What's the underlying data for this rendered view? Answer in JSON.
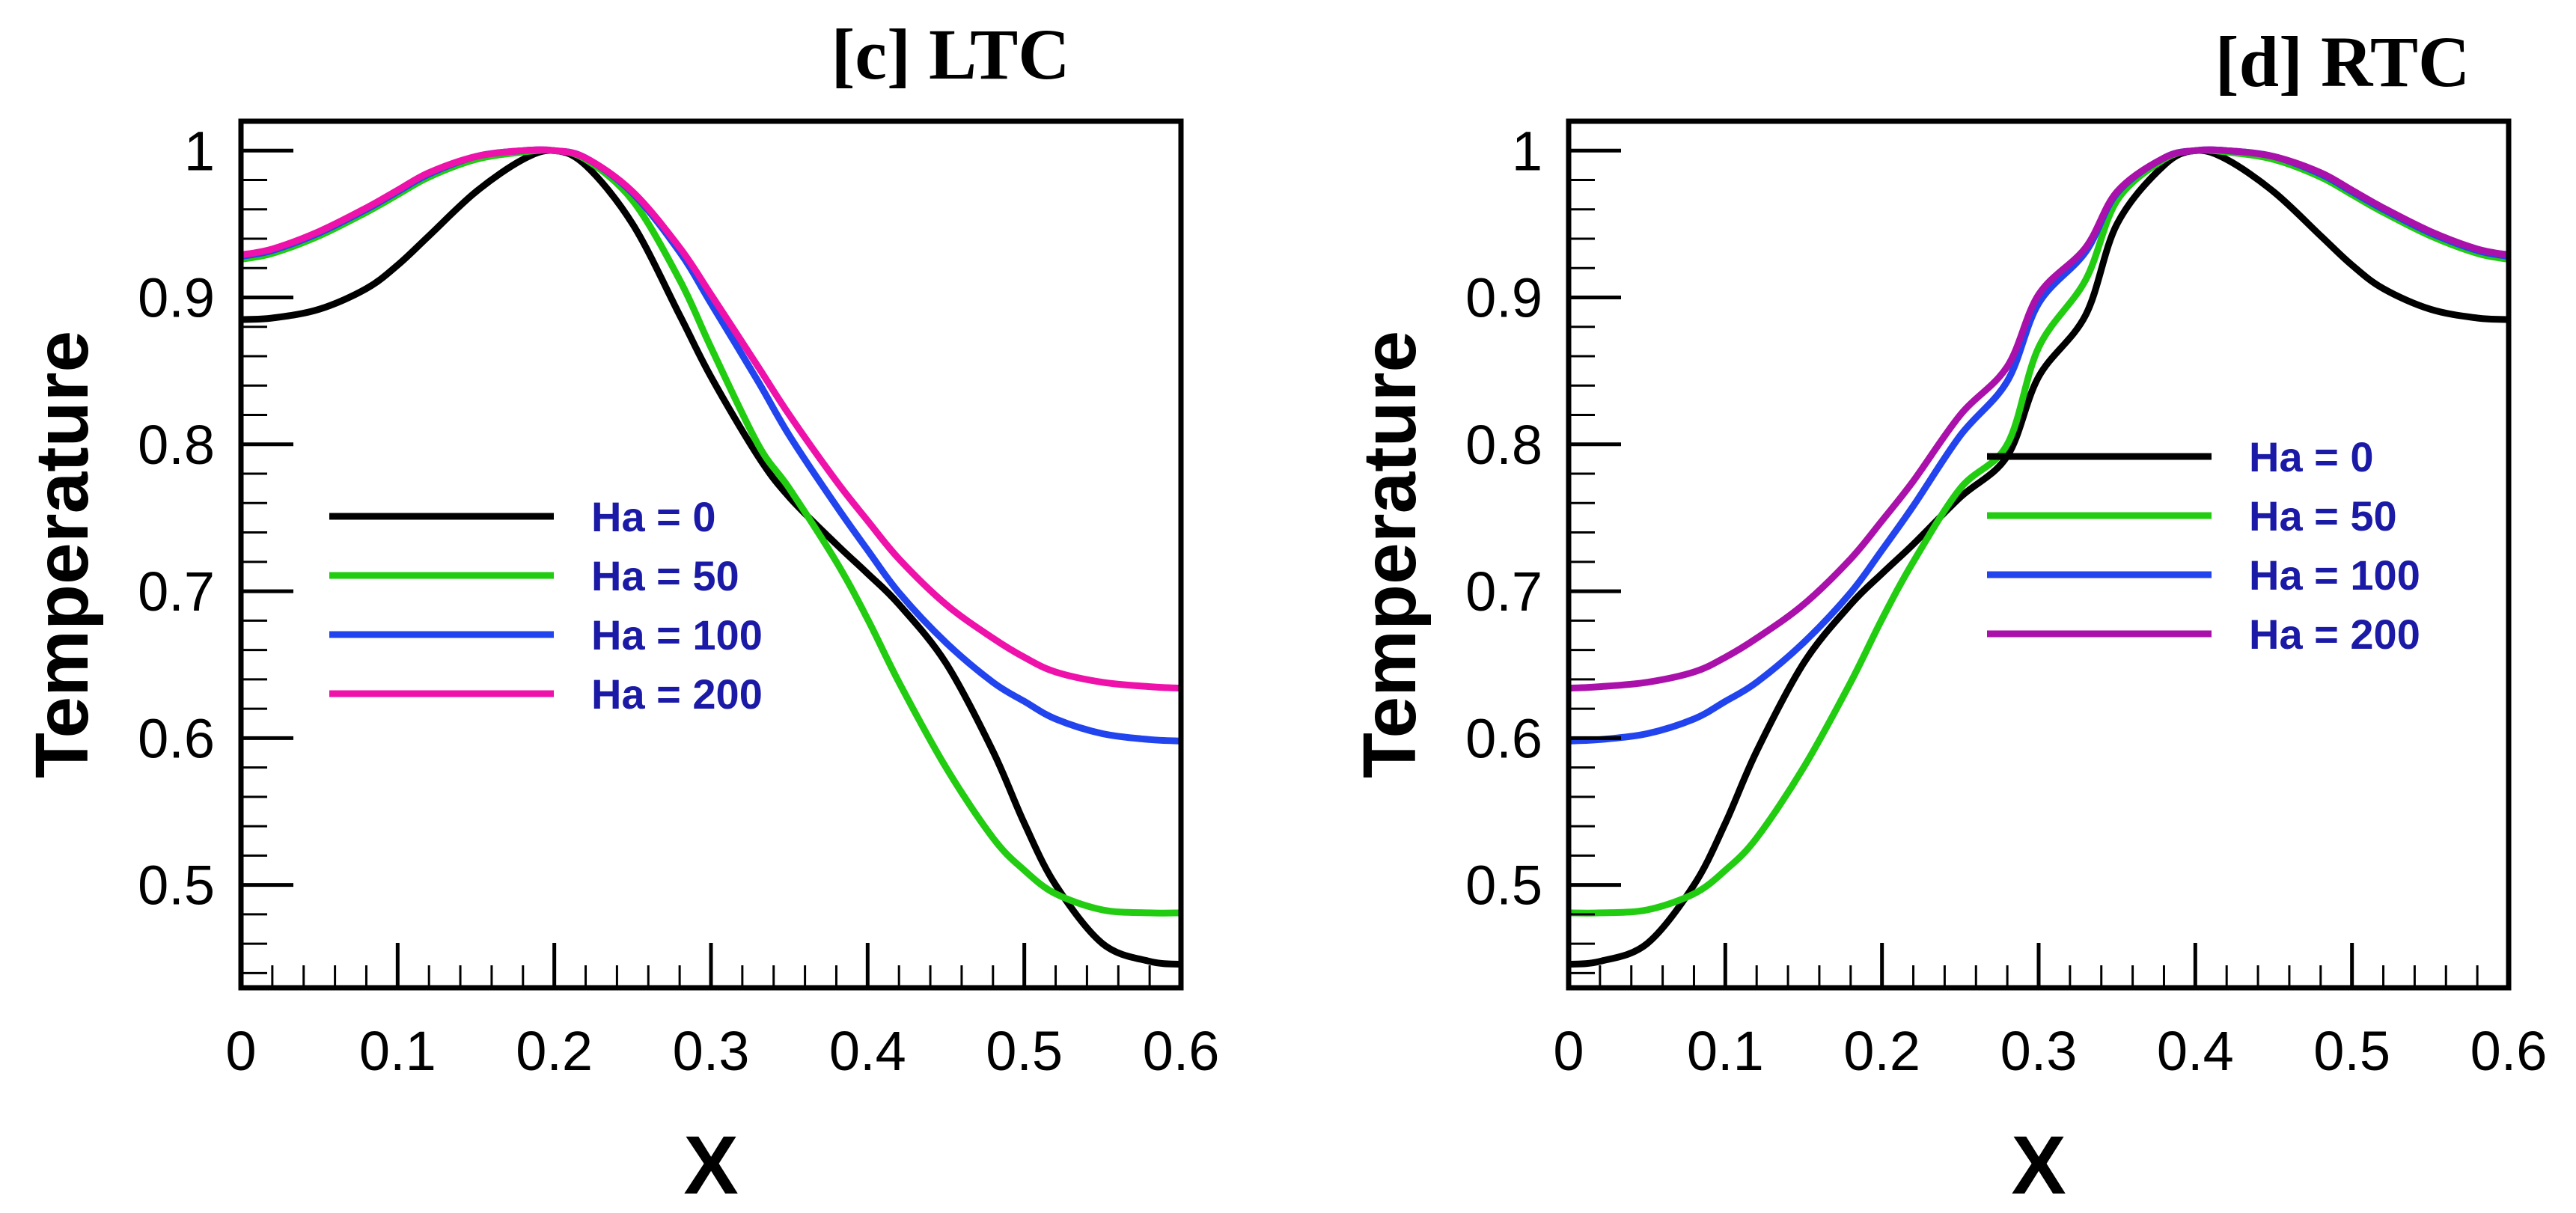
{
  "chart_data": [
    {
      "type": "line",
      "title": "[c] LTC",
      "xlabel": "X",
      "ylabel": "Temperature",
      "xlim": [
        0,
        0.6
      ],
      "ylim": [
        0.43,
        1.02
      ],
      "xticks": [
        0,
        0.1,
        0.2,
        0.3,
        0.4,
        0.5,
        0.6
      ],
      "xtick_labels": [
        "0",
        "0.1",
        "0.2",
        "0.3",
        "0.4",
        "0.5",
        "0.6"
      ],
      "yticks": [
        0.5,
        0.6,
        0.7,
        0.8,
        0.9,
        1.0
      ],
      "ytick_labels": [
        "0.5",
        "0.6",
        "0.7",
        "0.8",
        "0.9",
        "1"
      ],
      "legend_position": "center-left",
      "series": [
        {
          "name": "Ha = 0",
          "color": "#000000",
          "x": [
            0,
            0.02,
            0.05,
            0.08,
            0.1,
            0.12,
            0.15,
            0.18,
            0.2,
            0.22,
            0.25,
            0.28,
            0.3,
            0.33,
            0.35,
            0.38,
            0.4,
            0.42,
            0.45,
            0.48,
            0.5,
            0.52,
            0.55,
            0.58,
            0.6
          ],
          "y": [
            0.885,
            0.886,
            0.892,
            0.906,
            0.922,
            0.942,
            0.972,
            0.994,
            1.0,
            0.99,
            0.95,
            0.888,
            0.846,
            0.792,
            0.764,
            0.732,
            0.712,
            0.691,
            0.651,
            0.591,
            0.542,
            0.5,
            0.46,
            0.448,
            0.446
          ]
        },
        {
          "name": "Ha = 50",
          "color": "#22cc11",
          "x": [
            0,
            0.02,
            0.05,
            0.08,
            0.1,
            0.12,
            0.15,
            0.18,
            0.2,
            0.22,
            0.25,
            0.28,
            0.3,
            0.33,
            0.35,
            0.38,
            0.4,
            0.42,
            0.45,
            0.48,
            0.5,
            0.52,
            0.55,
            0.58,
            0.6
          ],
          "y": [
            0.926,
            0.93,
            0.942,
            0.958,
            0.97,
            0.982,
            0.994,
            0.999,
            1.0,
            0.994,
            0.966,
            0.912,
            0.866,
            0.8,
            0.77,
            0.72,
            0.681,
            0.638,
            0.58,
            0.532,
            0.51,
            0.494,
            0.483,
            0.481,
            0.481
          ]
        },
        {
          "name": "Ha = 100",
          "color": "#2244ee",
          "x": [
            0,
            0.02,
            0.05,
            0.08,
            0.1,
            0.12,
            0.15,
            0.18,
            0.2,
            0.22,
            0.25,
            0.28,
            0.3,
            0.33,
            0.35,
            0.38,
            0.4,
            0.42,
            0.45,
            0.48,
            0.5,
            0.52,
            0.55,
            0.58,
            0.6
          ],
          "y": [
            0.928,
            0.932,
            0.944,
            0.96,
            0.972,
            0.984,
            0.996,
            1.0,
            1.0,
            0.995,
            0.971,
            0.931,
            0.896,
            0.843,
            0.806,
            0.758,
            0.728,
            0.699,
            0.665,
            0.638,
            0.625,
            0.613,
            0.603,
            0.599,
            0.598
          ]
        },
        {
          "name": "Ha = 200",
          "color": "#ee11aa",
          "x": [
            0,
            0.02,
            0.05,
            0.08,
            0.1,
            0.12,
            0.15,
            0.18,
            0.2,
            0.22,
            0.25,
            0.28,
            0.3,
            0.33,
            0.35,
            0.38,
            0.4,
            0.42,
            0.45,
            0.48,
            0.5,
            0.52,
            0.55,
            0.58,
            0.6
          ],
          "y": [
            0.929,
            0.933,
            0.945,
            0.961,
            0.973,
            0.985,
            0.996,
            1.0,
            1.0,
            0.995,
            0.972,
            0.934,
            0.902,
            0.853,
            0.82,
            0.775,
            0.748,
            0.722,
            0.691,
            0.668,
            0.655,
            0.645,
            0.638,
            0.635,
            0.634
          ]
        }
      ]
    },
    {
      "type": "line",
      "title": "[d] RTC",
      "xlabel": "X",
      "ylabel": "Temperature",
      "xlim": [
        0,
        0.6
      ],
      "ylim": [
        0.43,
        1.02
      ],
      "xticks": [
        0,
        0.1,
        0.2,
        0.3,
        0.4,
        0.5,
        0.6
      ],
      "xtick_labels": [
        "0",
        "0.1",
        "0.2",
        "0.3",
        "0.4",
        "0.5",
        "0.6"
      ],
      "yticks": [
        0.5,
        0.6,
        0.7,
        0.8,
        0.9,
        1.0
      ],
      "ytick_labels": [
        "0.5",
        "0.6",
        "0.7",
        "0.8",
        "0.9",
        "1"
      ],
      "legend_position": "center-right",
      "series": [
        {
          "name": "Ha = 0",
          "color": "#000000",
          "x": [
            0,
            0.02,
            0.05,
            0.08,
            0.1,
            0.12,
            0.15,
            0.18,
            0.2,
            0.22,
            0.25,
            0.28,
            0.3,
            0.33,
            0.35,
            0.38,
            0.4,
            0.42,
            0.45,
            0.48,
            0.5,
            0.52,
            0.55,
            0.58,
            0.6
          ],
          "y": [
            0.446,
            0.448,
            0.46,
            0.5,
            0.542,
            0.591,
            0.651,
            0.691,
            0.712,
            0.732,
            0.764,
            0.792,
            0.846,
            0.888,
            0.95,
            0.99,
            1.0,
            0.994,
            0.972,
            0.942,
            0.922,
            0.906,
            0.892,
            0.886,
            0.885
          ]
        },
        {
          "name": "Ha = 50",
          "color": "#22cc11",
          "x": [
            0,
            0.02,
            0.05,
            0.08,
            0.1,
            0.12,
            0.15,
            0.18,
            0.2,
            0.22,
            0.25,
            0.28,
            0.3,
            0.33,
            0.35,
            0.38,
            0.4,
            0.42,
            0.45,
            0.48,
            0.5,
            0.52,
            0.55,
            0.58,
            0.6
          ],
          "y": [
            0.481,
            0.481,
            0.483,
            0.494,
            0.51,
            0.532,
            0.58,
            0.638,
            0.681,
            0.72,
            0.77,
            0.8,
            0.866,
            0.912,
            0.966,
            0.994,
            1.0,
            0.999,
            0.994,
            0.982,
            0.97,
            0.958,
            0.942,
            0.93,
            0.926
          ]
        },
        {
          "name": "Ha = 100",
          "color": "#2244ee",
          "x": [
            0,
            0.02,
            0.05,
            0.08,
            0.1,
            0.12,
            0.15,
            0.18,
            0.2,
            0.22,
            0.25,
            0.28,
            0.3,
            0.33,
            0.35,
            0.38,
            0.4,
            0.42,
            0.45,
            0.48,
            0.5,
            0.52,
            0.55,
            0.58,
            0.6
          ],
          "y": [
            0.598,
            0.599,
            0.603,
            0.613,
            0.625,
            0.638,
            0.665,
            0.699,
            0.728,
            0.758,
            0.806,
            0.843,
            0.896,
            0.931,
            0.971,
            0.995,
            1.0,
            1.0,
            0.996,
            0.984,
            0.972,
            0.96,
            0.944,
            0.932,
            0.928
          ]
        },
        {
          "name": "Ha = 200",
          "color": "#aa11aa",
          "x": [
            0,
            0.02,
            0.05,
            0.08,
            0.1,
            0.12,
            0.15,
            0.18,
            0.2,
            0.22,
            0.25,
            0.28,
            0.3,
            0.33,
            0.35,
            0.38,
            0.4,
            0.42,
            0.45,
            0.48,
            0.5,
            0.52,
            0.55,
            0.58,
            0.6
          ],
          "y": [
            0.634,
            0.635,
            0.638,
            0.645,
            0.655,
            0.668,
            0.691,
            0.722,
            0.748,
            0.775,
            0.82,
            0.853,
            0.902,
            0.934,
            0.972,
            0.995,
            1.0,
            1.0,
            0.996,
            0.985,
            0.973,
            0.961,
            0.945,
            0.933,
            0.929
          ]
        }
      ]
    }
  ]
}
